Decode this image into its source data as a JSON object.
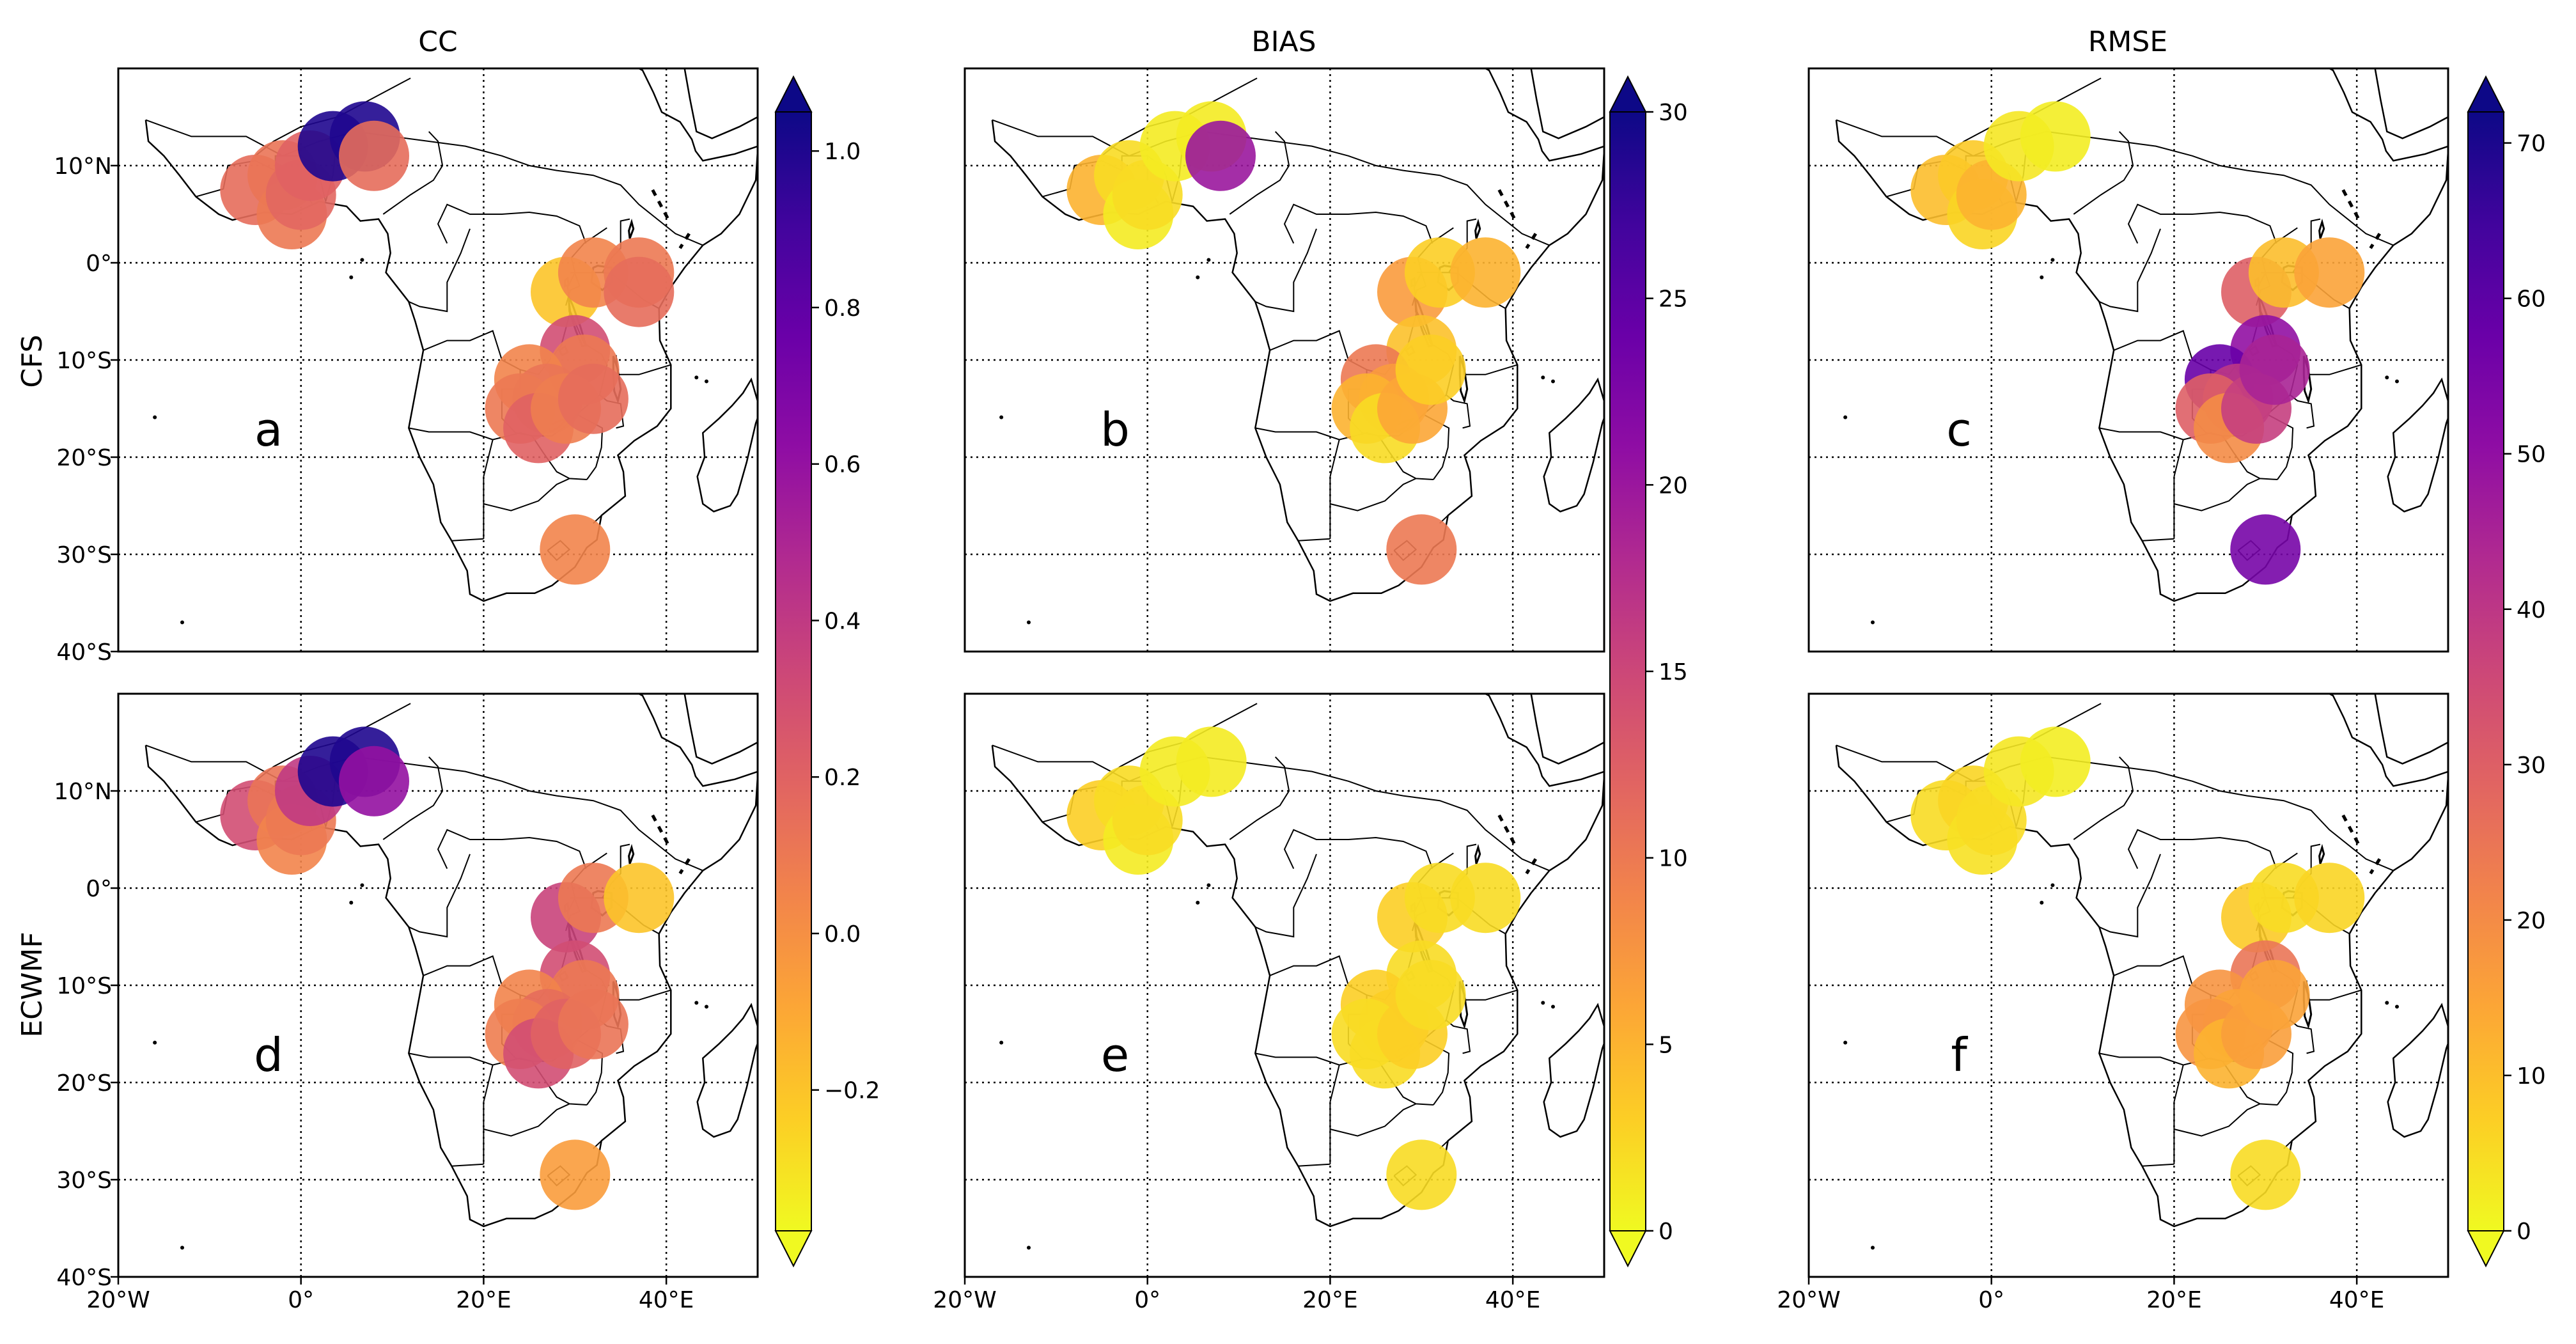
{
  "chart_data": {
    "type": "map-scatter",
    "layout": {
      "rows": 2,
      "cols": 3
    },
    "row_labels": [
      "CFS",
      "ECWMF"
    ],
    "column_titles": [
      "CC",
      "BIAS",
      "RMSE"
    ],
    "panel_letters": [
      [
        "a",
        "b",
        "c"
      ],
      [
        "d",
        "e",
        "f"
      ]
    ],
    "map_extent": {
      "lon": [
        -20,
        50
      ],
      "lat": [
        -40,
        20
      ]
    },
    "lon_ticks": [
      -20,
      0,
      20,
      40
    ],
    "lon_tick_labels": [
      "20°W",
      "0°",
      "20°E",
      "40°E"
    ],
    "lat_ticks": [
      10,
      0,
      -10,
      -20,
      -30,
      -40
    ],
    "lat_tick_labels": [
      "10°N",
      "0°",
      "10°S",
      "20°S",
      "30°S",
      "40°S"
    ],
    "colormap": "plasma_r",
    "colorbars": [
      {
        "metric": "CC",
        "range": [
          -0.38,
          1.05
        ],
        "ticks": [
          -0.2,
          0.0,
          0.2,
          0.4,
          0.6,
          0.8,
          1.0
        ],
        "tick_labels": [
          "−0.2",
          "0.0",
          "0.2",
          "0.4",
          "0.6",
          "0.8",
          "1.0"
        ]
      },
      {
        "metric": "BIAS",
        "range": [
          0,
          30
        ],
        "ticks": [
          0,
          5,
          10,
          15,
          20,
          25,
          30
        ],
        "tick_labels": [
          "0",
          "5",
          "10",
          "15",
          "20",
          "25",
          "30"
        ]
      },
      {
        "metric": "RMSE",
        "range": [
          0,
          72
        ],
        "ticks": [
          0,
          10,
          20,
          30,
          40,
          50,
          60,
          70
        ],
        "tick_labels": [
          "0",
          "10",
          "20",
          "30",
          "40",
          "50",
          "60",
          "70"
        ]
      }
    ],
    "panels": [
      {
        "model": "CFS",
        "metric": "CC",
        "letter": "a",
        "points": [
          {
            "lon": -5,
            "lat": 7.5,
            "value": 0.15
          },
          {
            "lon": -2,
            "lat": 9,
            "value": 0.12
          },
          {
            "lon": -1,
            "lat": 5,
            "value": 0.1
          },
          {
            "lon": 0,
            "lat": 7,
            "value": 0.18
          },
          {
            "lon": 1,
            "lat": 10,
            "value": 0.2
          },
          {
            "lon": 3.5,
            "lat": 12,
            "value": 1.0
          },
          {
            "lon": 7,
            "lat": 13,
            "value": 1.0
          },
          {
            "lon": 8,
            "lat": 11,
            "value": 0.15
          },
          {
            "lon": 29,
            "lat": -3,
            "value": -0.2
          },
          {
            "lon": 32,
            "lat": -1,
            "value": 0.05
          },
          {
            "lon": 37,
            "lat": -1,
            "value": 0.1
          },
          {
            "lon": 37,
            "lat": -3,
            "value": 0.15
          },
          {
            "lon": 30,
            "lat": -9,
            "value": 0.3
          },
          {
            "lon": 31,
            "lat": -11,
            "value": 0.1
          },
          {
            "lon": 25,
            "lat": -12,
            "value": 0.05
          },
          {
            "lon": 27,
            "lat": -14,
            "value": 0.12
          },
          {
            "lon": 24,
            "lat": -15,
            "value": 0.1
          },
          {
            "lon": 26,
            "lat": -17,
            "value": 0.2
          },
          {
            "lon": 29,
            "lat": -15,
            "value": 0.08
          },
          {
            "lon": 32,
            "lat": -14,
            "value": 0.15
          },
          {
            "lon": 30,
            "lat": -29.5,
            "value": 0.05
          }
        ]
      },
      {
        "model": "CFS",
        "metric": "BIAS",
        "letter": "b",
        "points": [
          {
            "lon": -5,
            "lat": 7.5,
            "value": 5
          },
          {
            "lon": -2,
            "lat": 9,
            "value": 2
          },
          {
            "lon": -1,
            "lat": 5,
            "value": 1
          },
          {
            "lon": 0,
            "lat": 7,
            "value": 2
          },
          {
            "lon": 3,
            "lat": 12,
            "value": 1
          },
          {
            "lon": 7,
            "lat": 13,
            "value": 1
          },
          {
            "lon": 8,
            "lat": 11,
            "value": 20
          },
          {
            "lon": 29,
            "lat": -3,
            "value": 7
          },
          {
            "lon": 32,
            "lat": -1,
            "value": 3
          },
          {
            "lon": 37,
            "lat": -1,
            "value": 5
          },
          {
            "lon": 30,
            "lat": -9,
            "value": 4
          },
          {
            "lon": 25,
            "lat": -12,
            "value": 10
          },
          {
            "lon": 27,
            "lat": -14,
            "value": 7
          },
          {
            "lon": 24,
            "lat": -15,
            "value": 5
          },
          {
            "lon": 26,
            "lat": -17,
            "value": 2
          },
          {
            "lon": 29,
            "lat": -15,
            "value": 6
          },
          {
            "lon": 31,
            "lat": -11,
            "value": 3
          },
          {
            "lon": 30,
            "lat": -29.5,
            "value": 10
          }
        ]
      },
      {
        "model": "CFS",
        "metric": "RMSE",
        "letter": "c",
        "points": [
          {
            "lon": -5,
            "lat": 7.5,
            "value": 10
          },
          {
            "lon": -2,
            "lat": 9,
            "value": 8
          },
          {
            "lon": -1,
            "lat": 5,
            "value": 6
          },
          {
            "lon": 0,
            "lat": 7,
            "value": 12
          },
          {
            "lon": 3,
            "lat": 12,
            "value": 3
          },
          {
            "lon": 7,
            "lat": 13,
            "value": 2
          },
          {
            "lon": 29,
            "lat": -3,
            "value": 30
          },
          {
            "lon": 32,
            "lat": -1,
            "value": 10
          },
          {
            "lon": 37,
            "lat": -1,
            "value": 15
          },
          {
            "lon": 30,
            "lat": -9,
            "value": 50
          },
          {
            "lon": 25,
            "lat": -12,
            "value": 58
          },
          {
            "lon": 27,
            "lat": -14,
            "value": 40
          },
          {
            "lon": 24,
            "lat": -15,
            "value": 30
          },
          {
            "lon": 26,
            "lat": -17,
            "value": 20
          },
          {
            "lon": 29,
            "lat": -15,
            "value": 38
          },
          {
            "lon": 31,
            "lat": -11,
            "value": 45
          },
          {
            "lon": 30,
            "lat": -29.5,
            "value": 55
          }
        ]
      },
      {
        "model": "ECWMF",
        "metric": "CC",
        "letter": "d",
        "points": [
          {
            "lon": -5,
            "lat": 7.5,
            "value": 0.3
          },
          {
            "lon": -2,
            "lat": 9,
            "value": 0.12
          },
          {
            "lon": -1,
            "lat": 5,
            "value": 0.05
          },
          {
            "lon": 0,
            "lat": 7,
            "value": 0.1
          },
          {
            "lon": 1,
            "lat": 10,
            "value": 0.4
          },
          {
            "lon": 3.5,
            "lat": 12,
            "value": 1.0
          },
          {
            "lon": 7,
            "lat": 13,
            "value": 1.0
          },
          {
            "lon": 8,
            "lat": 11,
            "value": 0.6
          },
          {
            "lon": 29,
            "lat": -3,
            "value": 0.35
          },
          {
            "lon": 32,
            "lat": -1,
            "value": 0.1
          },
          {
            "lon": 37,
            "lat": -1,
            "value": -0.2
          },
          {
            "lon": 30,
            "lat": -9,
            "value": 0.3
          },
          {
            "lon": 31,
            "lat": -11,
            "value": 0.1
          },
          {
            "lon": 25,
            "lat": -12,
            "value": 0.05
          },
          {
            "lon": 27,
            "lat": -14,
            "value": 0.15
          },
          {
            "lon": 24,
            "lat": -15,
            "value": 0.08
          },
          {
            "lon": 26,
            "lat": -17,
            "value": 0.3
          },
          {
            "lon": 29,
            "lat": -15,
            "value": 0.2
          },
          {
            "lon": 32,
            "lat": -14,
            "value": 0.12
          },
          {
            "lon": 30,
            "lat": -29.5,
            "value": -0.05
          }
        ]
      },
      {
        "model": "ECWMF",
        "metric": "BIAS",
        "letter": "e",
        "points": [
          {
            "lon": -5,
            "lat": 7.5,
            "value": 3
          },
          {
            "lon": -2,
            "lat": 9,
            "value": 2
          },
          {
            "lon": -1,
            "lat": 5,
            "value": 1
          },
          {
            "lon": 0,
            "lat": 7,
            "value": 2
          },
          {
            "lon": 3,
            "lat": 12,
            "value": 1
          },
          {
            "lon": 7,
            "lat": 13,
            "value": 1
          },
          {
            "lon": 29,
            "lat": -3,
            "value": 3
          },
          {
            "lon": 32,
            "lat": -1,
            "value": 2
          },
          {
            "lon": 37,
            "lat": -1,
            "value": 2
          },
          {
            "lon": 30,
            "lat": -9,
            "value": 2
          },
          {
            "lon": 25,
            "lat": -12,
            "value": 3
          },
          {
            "lon": 27,
            "lat": -14,
            "value": 3
          },
          {
            "lon": 24,
            "lat": -15,
            "value": 2
          },
          {
            "lon": 26,
            "lat": -17,
            "value": 2
          },
          {
            "lon": 29,
            "lat": -15,
            "value": 3
          },
          {
            "lon": 31,
            "lat": -11,
            "value": 2
          },
          {
            "lon": 30,
            "lat": -29.5,
            "value": 2
          }
        ]
      },
      {
        "model": "ECWMF",
        "metric": "RMSE",
        "letter": "f",
        "points": [
          {
            "lon": -5,
            "lat": 7.5,
            "value": 5
          },
          {
            "lon": -2,
            "lat": 9,
            "value": 6
          },
          {
            "lon": -1,
            "lat": 5,
            "value": 4
          },
          {
            "lon": 0,
            "lat": 7,
            "value": 5
          },
          {
            "lon": 3,
            "lat": 12,
            "value": 3
          },
          {
            "lon": 7,
            "lat": 13,
            "value": 2
          },
          {
            "lon": 29,
            "lat": -3,
            "value": 8
          },
          {
            "lon": 32,
            "lat": -1,
            "value": 5
          },
          {
            "lon": 37,
            "lat": -1,
            "value": 6
          },
          {
            "lon": 30,
            "lat": -9,
            "value": 25
          },
          {
            "lon": 25,
            "lat": -12,
            "value": 18
          },
          {
            "lon": 27,
            "lat": -14,
            "value": 15
          },
          {
            "lon": 24,
            "lat": -15,
            "value": 18
          },
          {
            "lon": 26,
            "lat": -17,
            "value": 12
          },
          {
            "lon": 29,
            "lat": -15,
            "value": 16
          },
          {
            "lon": 31,
            "lat": -11,
            "value": 15
          },
          {
            "lon": 30,
            "lat": -29.5,
            "value": 5
          }
        ]
      }
    ]
  }
}
